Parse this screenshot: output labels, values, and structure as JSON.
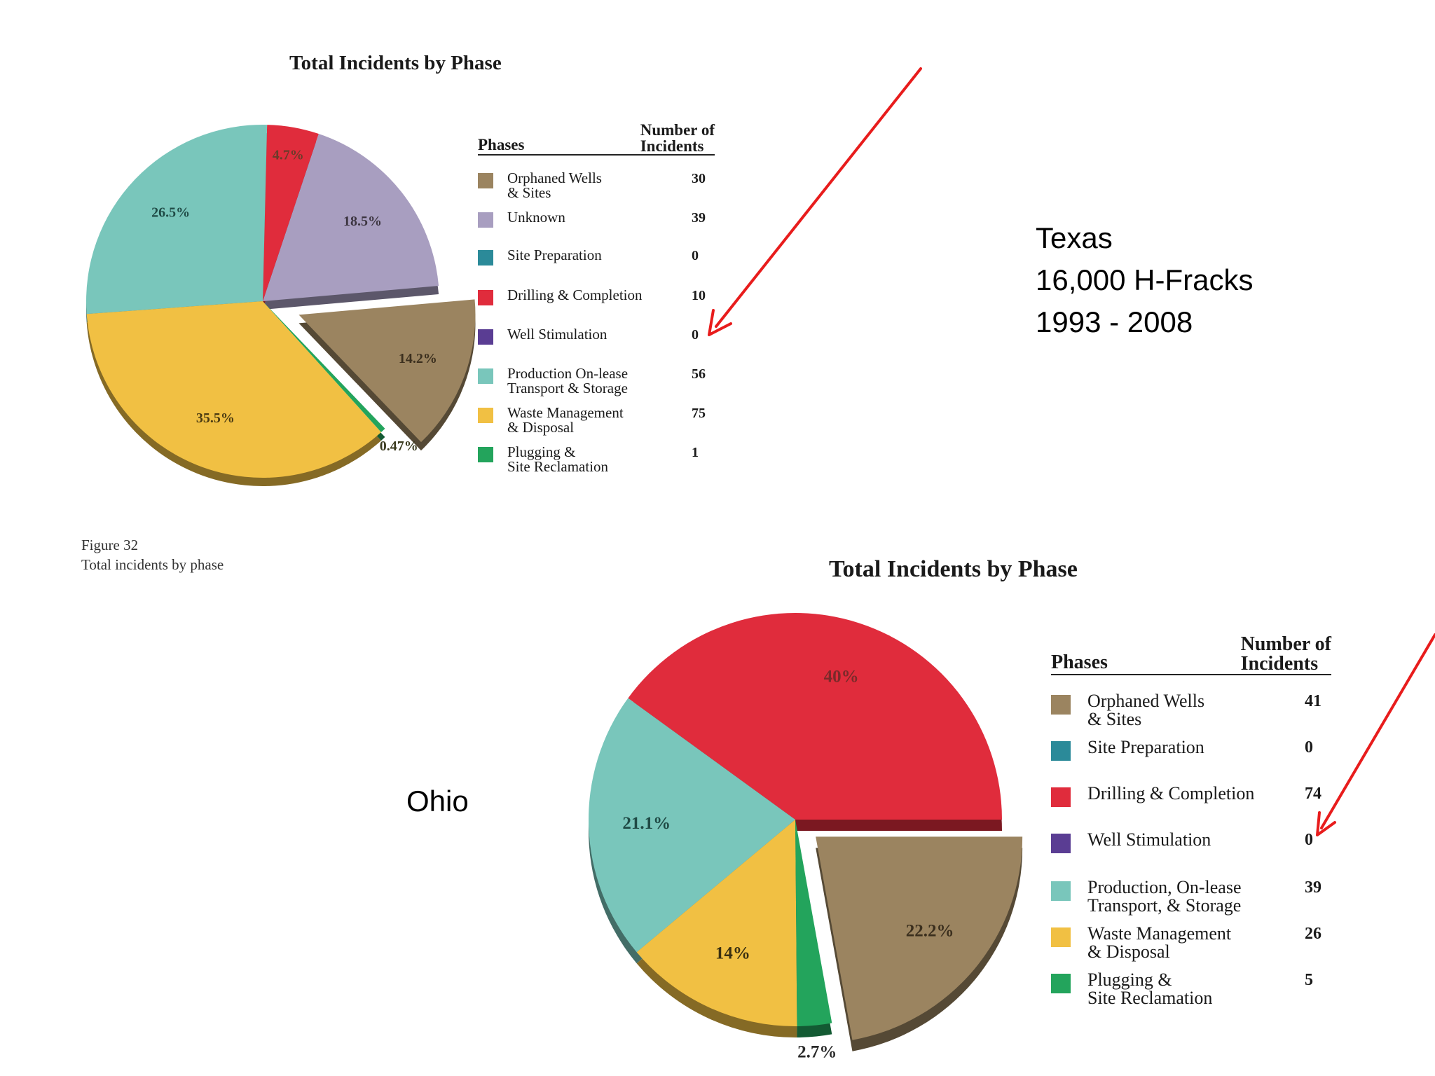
{
  "texas": {
    "title": "Total Incidents by Phase",
    "legend_header_phases": "Phases",
    "legend_header_number": "Number of\nIncidents",
    "figure_caption_line1": "Figure 32",
    "figure_caption_line2": "Total incidents by phase",
    "info_state": "Texas",
    "info_fracks": "16,000 H-Fracks",
    "info_years": "1993 - 2008"
  },
  "ohio": {
    "title": "Total Incidents by Phase",
    "legend_header_phases": "Phases",
    "legend_header_number": "Number of\nIncidents",
    "label": "Ohio"
  },
  "colors": {
    "orphaned": "#9b8460",
    "unknown": "#a89ec0",
    "site_prep": "#2b8a99",
    "drilling": "#e02c3c",
    "stimulation": "#5a3d93",
    "production": "#79c6bb",
    "waste": "#f1c043",
    "plugging": "#23a45c",
    "arrow": "#e81c1c"
  },
  "chart_data": [
    {
      "type": "pie",
      "title": "Total Incidents by Phase",
      "slices": [
        {
          "label": "Orphaned Wells\n& Sites",
          "value": 30,
          "pct_label": "14.2%",
          "color_key": "orphaned",
          "exploded": true
        },
        {
          "label": "Unknown",
          "value": 39,
          "pct_label": "18.5%",
          "color_key": "unknown"
        },
        {
          "label": "Site Preparation",
          "value": 0,
          "pct_label": "",
          "color_key": "site_prep"
        },
        {
          "label": "Drilling & Completion",
          "value": 10,
          "pct_label": "4.7%",
          "color_key": "drilling"
        },
        {
          "label": "Well Stimulation",
          "value": 0,
          "pct_label": "",
          "color_key": "stimulation"
        },
        {
          "label": "Production On-lease\nTransport & Storage",
          "value": 56,
          "pct_label": "26.5%",
          "color_key": "production"
        },
        {
          "label": "Waste Management\n& Disposal",
          "value": 75,
          "pct_label": "35.5%",
          "color_key": "waste"
        },
        {
          "label": "Plugging &\nSite Reclamation",
          "value": 1,
          "pct_label": "0.47%",
          "color_key": "plugging"
        }
      ]
    },
    {
      "type": "pie",
      "title": "Total Incidents by Phase",
      "slices": [
        {
          "label": "Orphaned Wells\n& Sites",
          "value": 41,
          "pct_label": "22.2%",
          "color_key": "orphaned",
          "exploded": true
        },
        {
          "label": "Site Preparation",
          "value": 0,
          "pct_label": "",
          "color_key": "site_prep"
        },
        {
          "label": "Drilling & Completion",
          "value": 74,
          "pct_label": "40%",
          "color_key": "drilling"
        },
        {
          "label": "Well Stimulation",
          "value": 0,
          "pct_label": "",
          "color_key": "stimulation"
        },
        {
          "label": "Production, On-lease\nTransport, & Storage",
          "value": 39,
          "pct_label": "21.1%",
          "color_key": "production"
        },
        {
          "label": "Waste Management\n& Disposal",
          "value": 26,
          "pct_label": "14%",
          "color_key": "waste"
        },
        {
          "label": "Plugging &\nSite Reclamation",
          "value": 5,
          "pct_label": "2.7%",
          "color_key": "plugging"
        }
      ]
    }
  ]
}
